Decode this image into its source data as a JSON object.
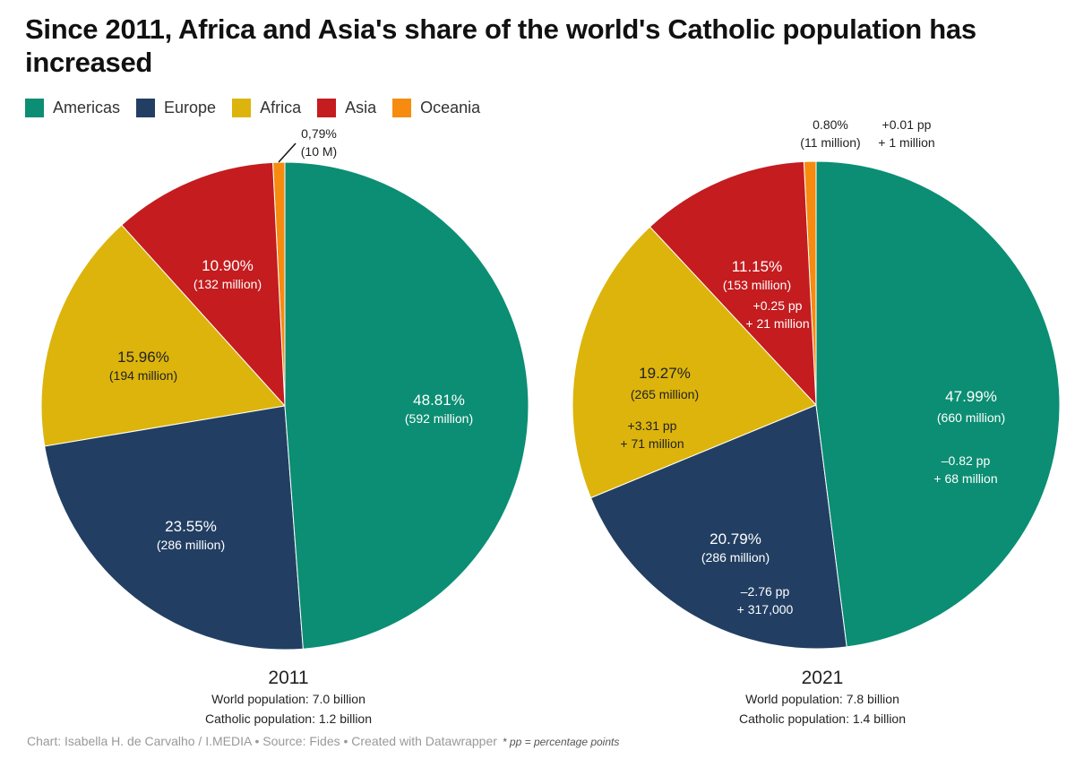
{
  "title": "Since 2011, Africa and Asia's share of the world's Catholic population has increased",
  "legend": [
    {
      "name": "Americas",
      "color": "#0b8e73"
    },
    {
      "name": "Europe",
      "color": "#223f63"
    },
    {
      "name": "Africa",
      "color": "#dcb40c"
    },
    {
      "name": "Asia",
      "color": "#c41c1f"
    },
    {
      "name": "Oceania",
      "color": "#f68b0f"
    }
  ],
  "chart_data": [
    {
      "type": "pie",
      "title": "2011",
      "subtitle": [
        "World population: 7.0 billion",
        "Catholic population: 1.2 billion"
      ],
      "slices": [
        {
          "name": "Americas",
          "value": 48.81,
          "pct_label": "48.81%",
          "abs_label": "(592 million)"
        },
        {
          "name": "Europe",
          "value": 23.55,
          "pct_label": "23.55%",
          "abs_label": "(286 million)"
        },
        {
          "name": "Africa",
          "value": 15.96,
          "pct_label": "15.96%",
          "abs_label": "(194 million)"
        },
        {
          "name": "Asia",
          "value": 10.9,
          "pct_label": "10.90%",
          "abs_label": "(132 million)"
        },
        {
          "name": "Oceania",
          "value": 0.79,
          "pct_label": "0,79%",
          "abs_label": "(10 M)"
        }
      ]
    },
    {
      "type": "pie",
      "title": "2021",
      "subtitle": [
        "World population: 7.8 billion",
        "Catholic population: 1.4 billion"
      ],
      "slices": [
        {
          "name": "Americas",
          "value": 47.99,
          "pct_label": "47.99%",
          "abs_label": "(660 million)",
          "delta_pp": "–0.82 pp",
          "delta_abs": "+ 68 million"
        },
        {
          "name": "Europe",
          "value": 20.79,
          "pct_label": "20.79%",
          "abs_label": "(286 million)",
          "delta_pp": "–2.76 pp",
          "delta_abs": "+ 317,000"
        },
        {
          "name": "Africa",
          "value": 19.27,
          "pct_label": "19.27%",
          "abs_label": "(265 million)",
          "delta_pp": "+3.31 pp",
          "delta_abs": "+ 71 million"
        },
        {
          "name": "Asia",
          "value": 11.15,
          "pct_label": "11.15%",
          "abs_label": "(153 million)",
          "delta_pp": "+0.25 pp",
          "delta_abs": "+ 21 million"
        },
        {
          "name": "Oceania",
          "value": 0.8,
          "pct_label": "0.80%",
          "abs_label": "(11 million)",
          "delta_pp": "+0.01 pp",
          "delta_abs": "+ 1 million"
        }
      ]
    }
  ],
  "footer": {
    "credit": "Chart: Isabella H. de Carvalho / I.MEDIA • Source: Fides • Created with Datawrapper",
    "note": "* pp = percentage points"
  }
}
